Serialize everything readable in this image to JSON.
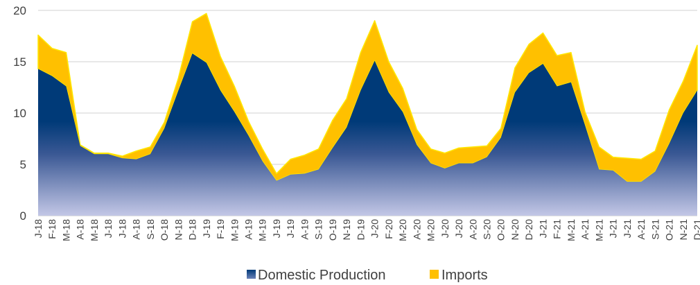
{
  "chart_data": {
    "type": "area",
    "stacked": true,
    "title": "",
    "xlabel": "",
    "ylabel": "",
    "ylim": [
      0,
      20
    ],
    "yticks": [
      0,
      5,
      10,
      15,
      20
    ],
    "grid": "horizontal",
    "legend_position": "bottom",
    "categories": [
      "J-18",
      "F-18",
      "M-18",
      "A-18",
      "M-18",
      "J-18",
      "J-18",
      "A-18",
      "S-18",
      "O-18",
      "N-18",
      "D-18",
      "J-19",
      "F-19",
      "M-19",
      "A-19",
      "M-19",
      "J-19",
      "J-19",
      "A-19",
      "S-19",
      "O-19",
      "N-19",
      "D-19",
      "J-20",
      "F-20",
      "M-20",
      "A-20",
      "M-20",
      "J-20",
      "J-20",
      "A-20",
      "S-20",
      "O-20",
      "N-20",
      "D-20",
      "J-21",
      "F-21",
      "M-21",
      "A-21",
      "M-21",
      "J-21",
      "J-21",
      "A-21",
      "S-21",
      "O-21",
      "N-21",
      "D-21"
    ],
    "series": [
      {
        "name": "Domestic Production",
        "color": "#003a78",
        "values": [
          14.3,
          13.6,
          12.6,
          6.8,
          6.0,
          6.0,
          5.6,
          5.5,
          6.0,
          8.5,
          12.2,
          15.8,
          14.9,
          12.2,
          10.1,
          7.8,
          5.3,
          3.4,
          4.0,
          4.1,
          4.5,
          6.6,
          8.6,
          12.2,
          15.1,
          12.0,
          10.1,
          6.9,
          5.1,
          4.6,
          5.1,
          5.1,
          5.7,
          7.6,
          12.0,
          13.9,
          14.8,
          12.6,
          13.0,
          8.8,
          4.5,
          4.4,
          3.3,
          3.3,
          4.3,
          7.0,
          10.0,
          12.2
        ]
      },
      {
        "name": "Imports",
        "color": "#ffc000",
        "values": [
          3.3,
          2.7,
          3.3,
          0.1,
          0.1,
          0.1,
          0.2,
          0.8,
          0.7,
          0.6,
          1.2,
          3.1,
          4.8,
          3.3,
          2.5,
          1.4,
          1.2,
          0.7,
          1.5,
          1.8,
          2.0,
          2.7,
          2.8,
          3.7,
          3.9,
          3.0,
          2.3,
          1.5,
          1.4,
          1.5,
          1.5,
          1.6,
          1.1,
          0.9,
          2.4,
          2.8,
          3.0,
          3.0,
          2.9,
          1.3,
          2.2,
          1.3,
          2.3,
          2.2,
          2.0,
          3.3,
          3.1,
          4.4
        ]
      }
    ]
  }
}
